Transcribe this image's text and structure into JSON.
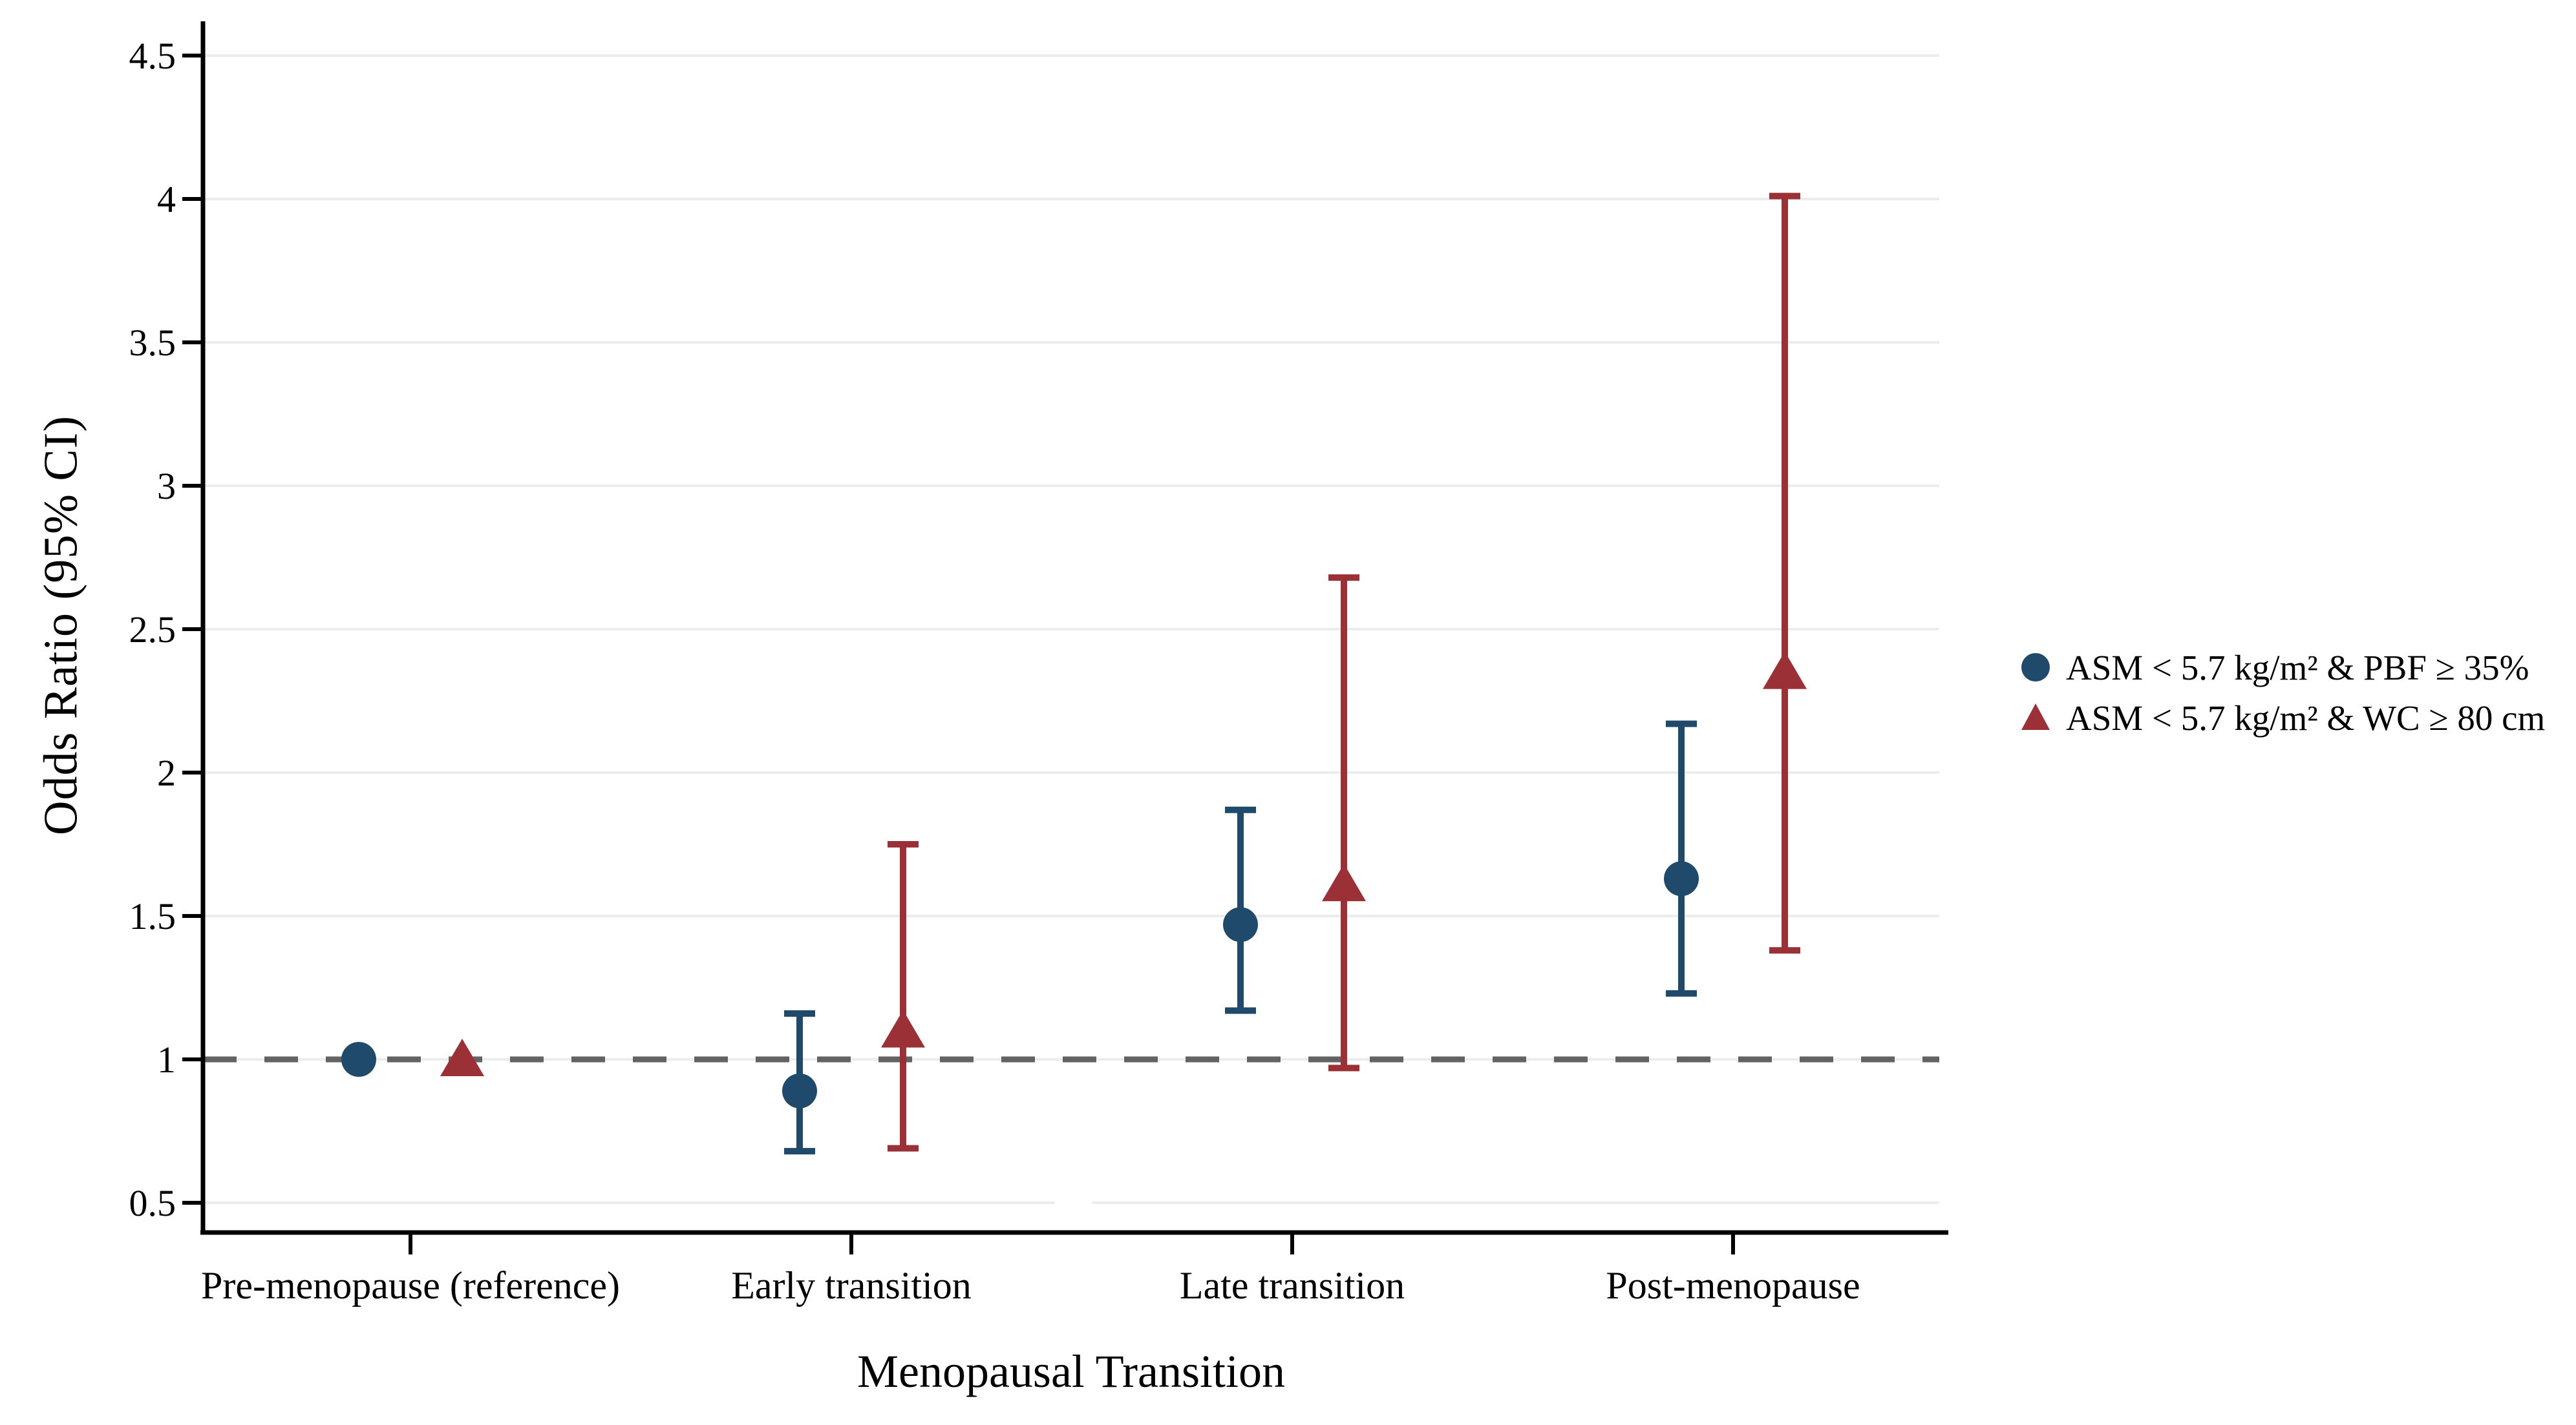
{
  "figure": {
    "y_axis_title": "Odds Ratio (95% CI)",
    "x_axis_title": "Menopausal Transition"
  },
  "chart_data": {
    "type": "scatter",
    "subtype": "errorbar-forest-plot",
    "title": "",
    "xlabel": "Menopausal Transition",
    "ylabel": "Odds Ratio (95% CI)",
    "categories": [
      "Pre-menopause (reference)",
      "Early transition",
      "Late transition",
      "Post-menopause"
    ],
    "series": [
      {
        "name": "ASM < 5.7 kg/m² & PBF ≥ 35%",
        "marker": "circle",
        "color": "#1F4A6C",
        "odds_ratio": [
          1.0,
          0.89,
          1.47,
          1.63
        ],
        "ci_low": [
          1.0,
          0.68,
          1.17,
          1.23
        ],
        "ci_high": [
          1.0,
          1.16,
          1.87,
          2.17
        ]
      },
      {
        "name": "ASM < 5.7 kg/m² & WC ≥ 80 cm",
        "marker": "triangle",
        "color": "#9C3037",
        "odds_ratio": [
          1.0,
          1.1,
          1.61,
          2.35
        ],
        "ci_low": [
          1.0,
          0.69,
          0.97,
          1.38
        ],
        "ci_high": [
          1.0,
          1.75,
          2.68,
          4.01
        ]
      }
    ],
    "yticks": [
      0.5,
      1,
      1.5,
      2,
      2.5,
      3,
      3.5,
      4,
      4.5
    ],
    "ytick_labels": [
      "0.5",
      "1",
      "1.5",
      "2",
      "2.5",
      "3",
      "3.5",
      "4",
      "4.5"
    ],
    "ylim": [
      0.4,
      4.6
    ],
    "reference_line": 1,
    "grid": true,
    "legend_position": "right-middle",
    "colors": {
      "gridline": "#ECECEC",
      "reference_dash": "#636363",
      "axis": "#000000"
    }
  },
  "legend": {
    "items": [
      {
        "label": "ASM < 5.7 kg/m² & PBF ≥ 35%",
        "marker": "circle-icon"
      },
      {
        "label": "ASM < 5.7 kg/m² & WC ≥ 80 cm",
        "marker": "triangle-icon"
      }
    ]
  }
}
